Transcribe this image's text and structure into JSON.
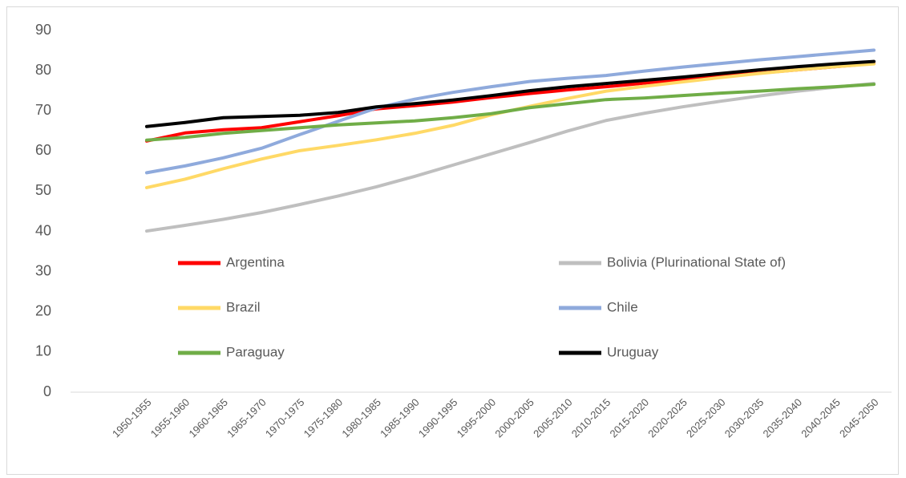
{
  "chart_data": {
    "type": "line",
    "categories": [
      "1950-1955",
      "1955-1960",
      "1960-1965",
      "1965-1970",
      "1970-1975",
      "1975-1980",
      "1980-1985",
      "1985-1990",
      "1990-1995",
      "1995-2000",
      "2000-2005",
      "2005-2010",
      "2010-2015",
      "2015-2020",
      "2020-2025",
      "2025-2030",
      "2030-2035",
      "2035-2040",
      "2040-2045",
      "2045-2050"
    ],
    "series": [
      {
        "name": "Argentina",
        "color": "#ff0000",
        "values": [
          62.5,
          64.5,
          65.3,
          65.8,
          67.3,
          68.8,
          70.5,
          71.3,
          72.2,
          73.3,
          74.3,
          75.2,
          76.0,
          76.9,
          77.8,
          78.6,
          79.4,
          80.2,
          81.0,
          81.8
        ]
      },
      {
        "name": "Bolivia (Plurinational State of)",
        "color": "#bfbfbf",
        "values": [
          40.1,
          41.5,
          43.0,
          44.7,
          46.7,
          48.8,
          51.1,
          53.7,
          56.5,
          59.3,
          62.1,
          65.0,
          67.6,
          69.4,
          71.0,
          72.4,
          73.7,
          74.9,
          75.9,
          76.8
        ]
      },
      {
        "name": "Brazil",
        "color": "#ffd966",
        "values": [
          50.9,
          53.0,
          55.6,
          58.0,
          60.1,
          61.4,
          62.8,
          64.4,
          66.4,
          69.0,
          71.1,
          73.1,
          74.9,
          76.1,
          77.2,
          78.3,
          79.3,
          80.2,
          81.0,
          81.7
        ]
      },
      {
        "name": "Chile",
        "color": "#8faadc",
        "values": [
          54.6,
          56.3,
          58.3,
          60.7,
          64.1,
          67.4,
          70.7,
          72.9,
          74.6,
          76.0,
          77.3,
          78.1,
          78.8,
          79.9,
          80.9,
          81.8,
          82.7,
          83.5,
          84.3,
          85.1
        ]
      },
      {
        "name": "Paraguay",
        "color": "#70ad47",
        "values": [
          62.7,
          63.4,
          64.4,
          65.1,
          65.8,
          66.5,
          67.0,
          67.5,
          68.3,
          69.3,
          70.8,
          71.8,
          72.8,
          73.2,
          73.8,
          74.4,
          74.9,
          75.5,
          76.0,
          76.6
        ]
      },
      {
        "name": "Uruguay",
        "color": "#000000",
        "values": [
          66.1,
          67.1,
          68.3,
          68.6,
          68.9,
          69.6,
          71.0,
          71.8,
          72.7,
          73.8,
          75.0,
          76.0,
          76.8,
          77.6,
          78.4,
          79.3,
          80.2,
          81.0,
          81.7,
          82.3
        ]
      }
    ],
    "ylim": [
      0,
      90
    ],
    "yticks": [
      0,
      10,
      20,
      30,
      40,
      50,
      60,
      70,
      80,
      90
    ],
    "grid": false,
    "legend": "inside"
  }
}
